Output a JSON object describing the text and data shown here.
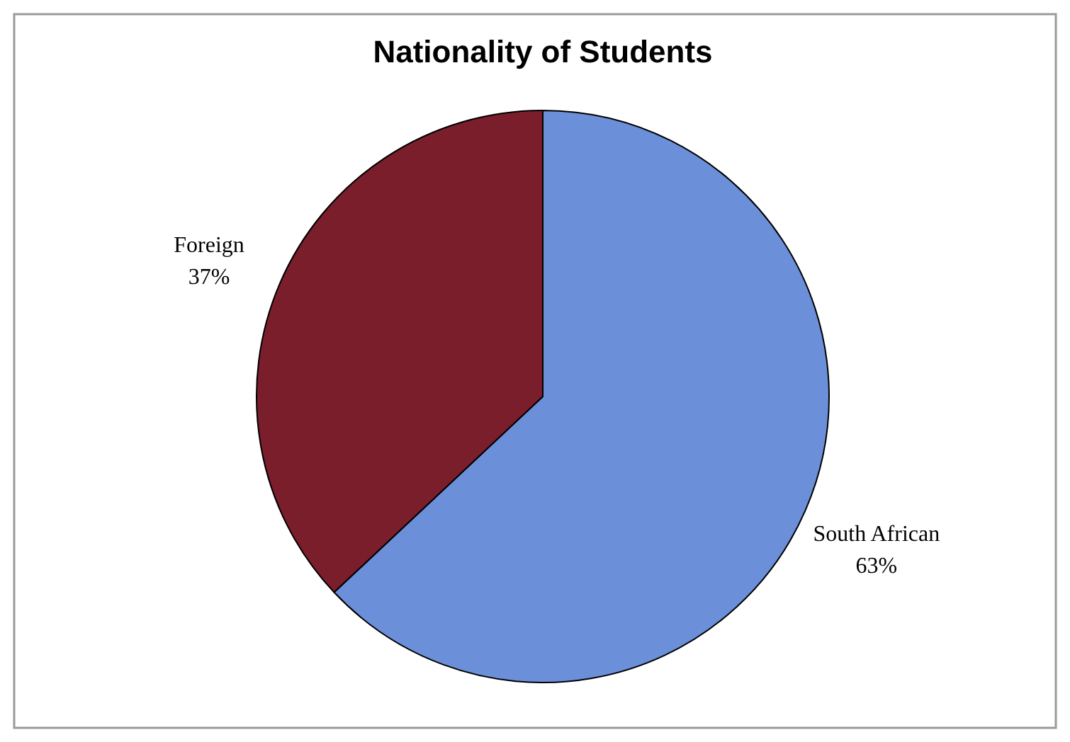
{
  "chart_data": {
    "type": "pie",
    "title": "Nationality of Students",
    "categories": [
      "South African",
      "Foreign"
    ],
    "values": [
      63,
      37
    ],
    "colors": [
      "#6b8fd8",
      "#7a1e2b"
    ],
    "value_labels": [
      "63%",
      "37%"
    ]
  }
}
